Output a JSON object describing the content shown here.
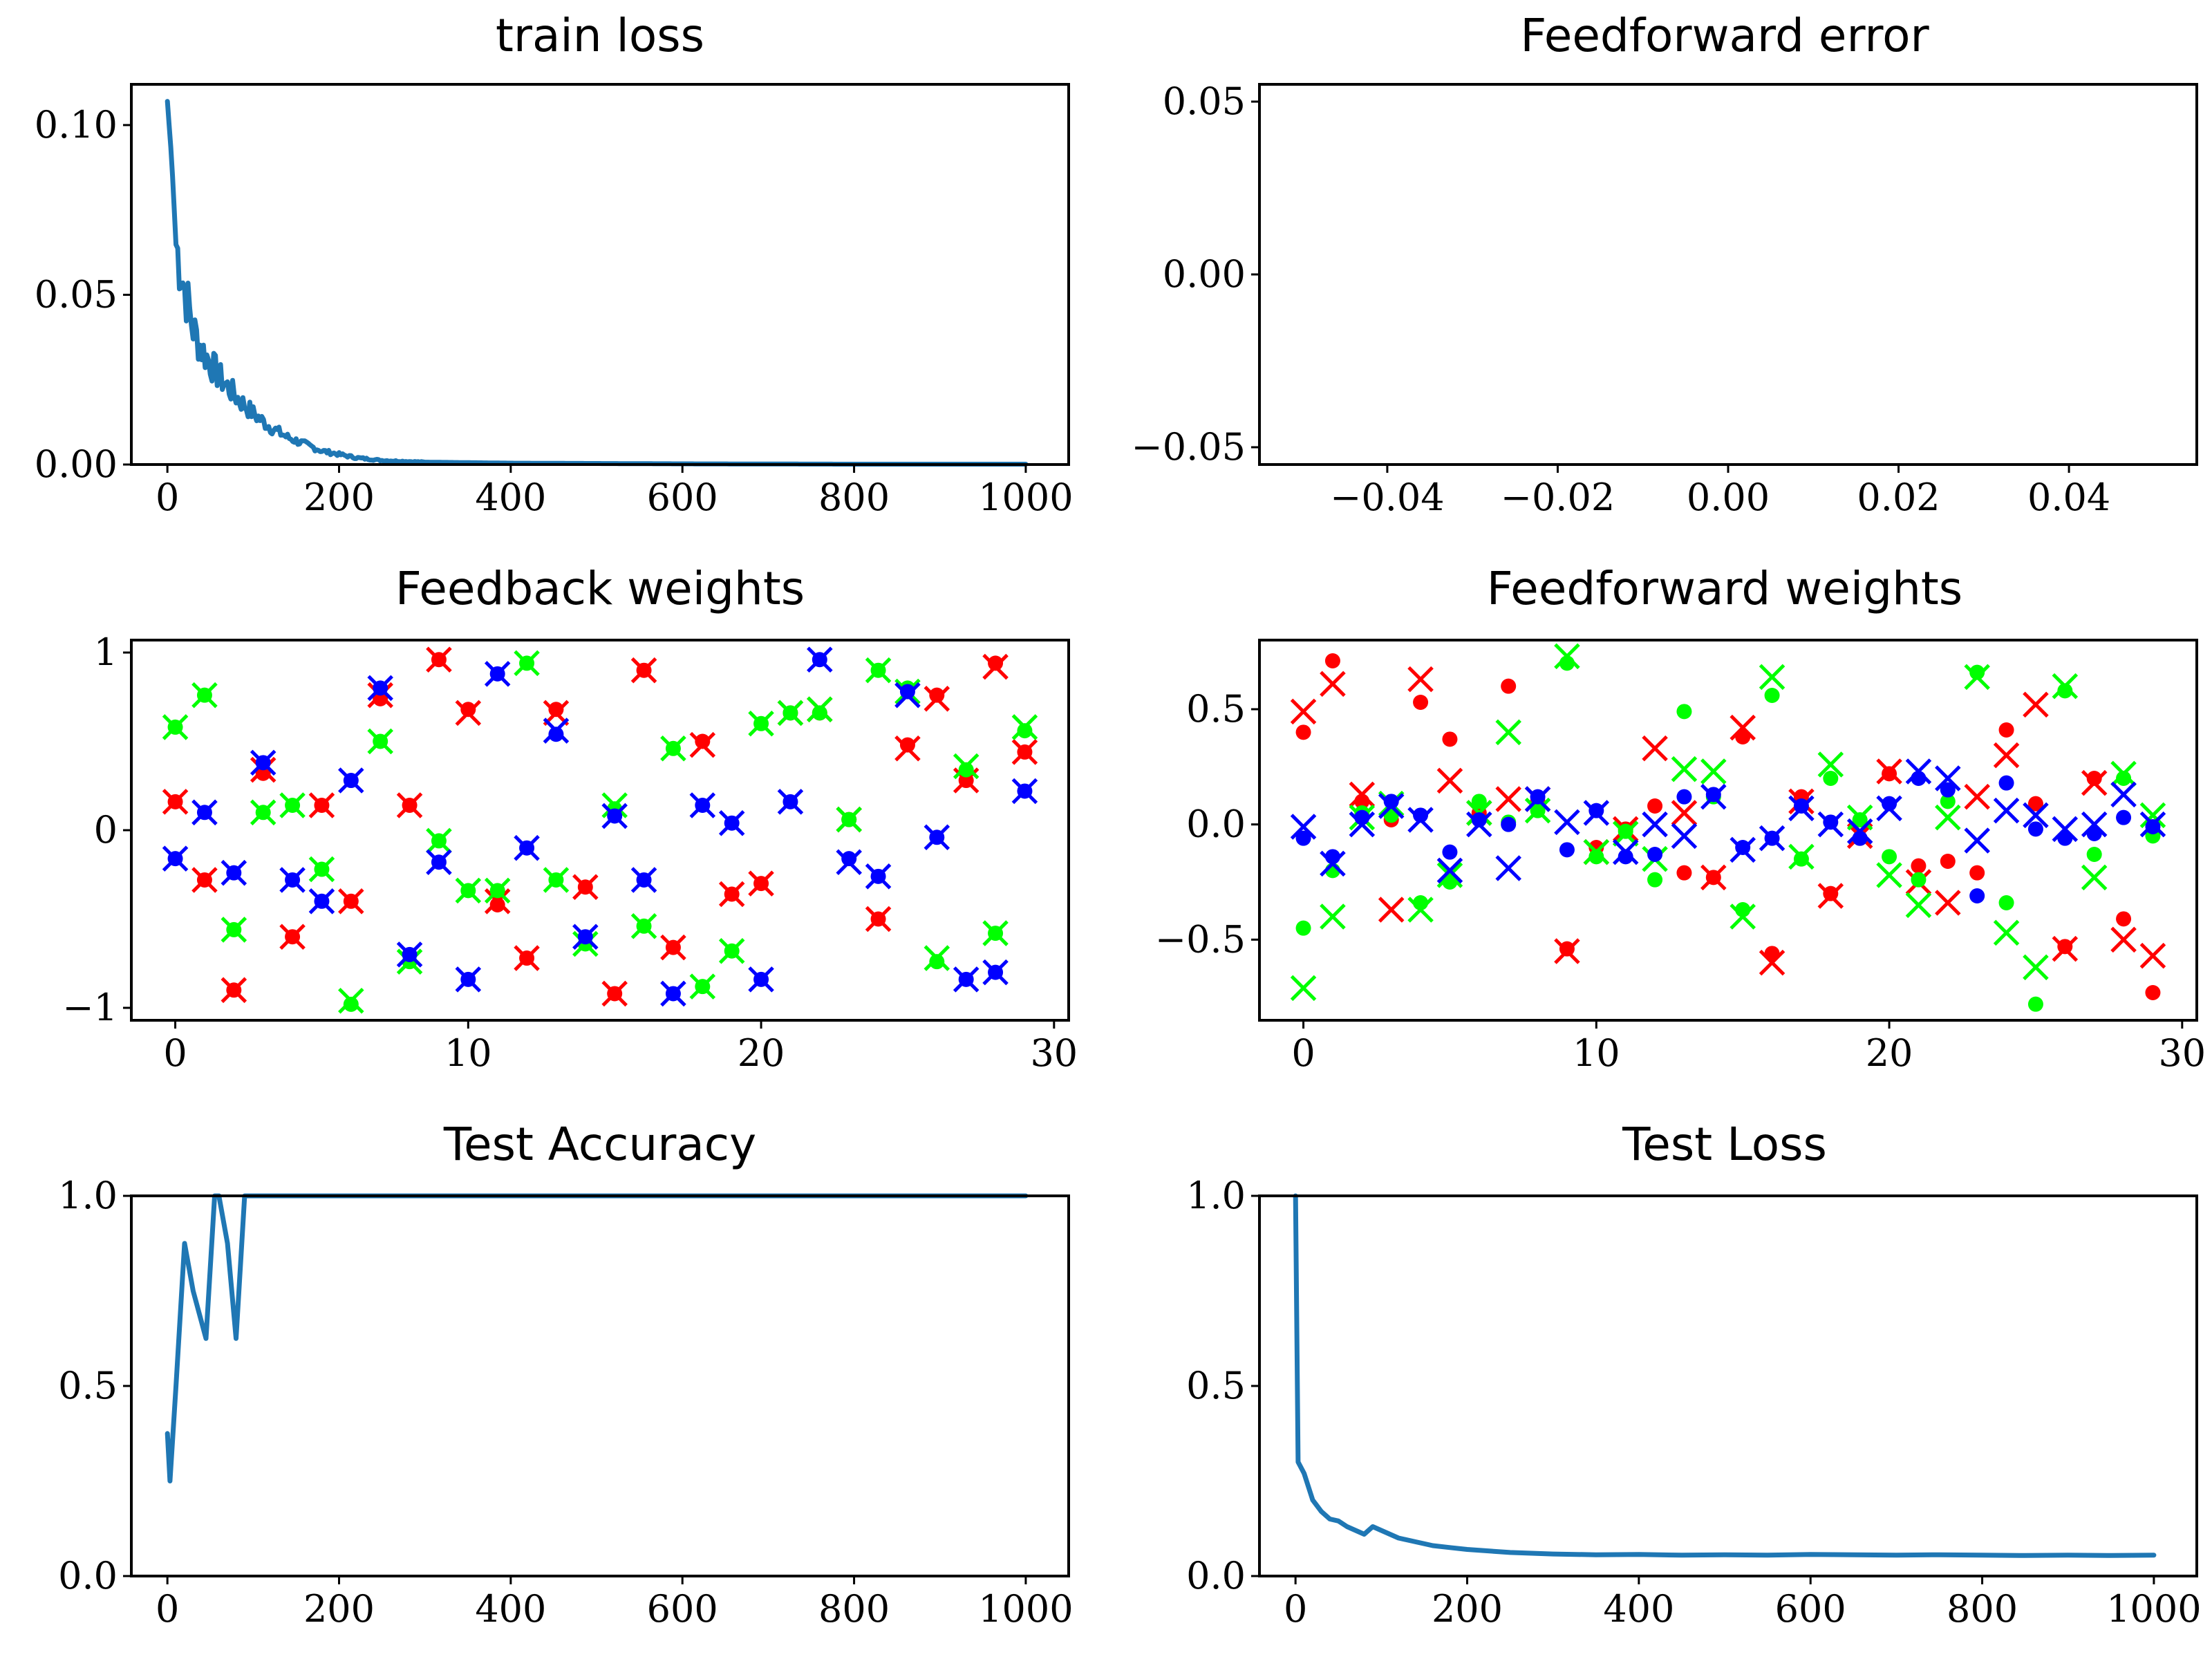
{
  "chart_data": [
    {
      "type": "line",
      "title": "train loss",
      "xlabel": "",
      "ylabel": "",
      "xlim": [
        -42,
        1050
      ],
      "ylim": [
        0,
        0.112
      ],
      "xticks": [
        0,
        200,
        400,
        600,
        800,
        1000
      ],
      "xtick_labels": [
        "0",
        "200",
        "400",
        "600",
        "800",
        "1000"
      ],
      "yticks": [
        0,
        0.05,
        0.1
      ],
      "ytick_labels": [
        "0.00",
        "0.05",
        "0.10"
      ],
      "grid": false,
      "color": "#1f77b4",
      "noisy": true,
      "x": [
        0,
        5,
        10,
        20,
        30,
        40,
        50,
        60,
        80,
        100,
        120,
        140,
        160,
        180,
        200,
        220,
        250,
        300,
        400,
        500,
        600,
        700,
        800,
        900,
        1000
      ],
      "y": [
        0.107,
        0.09,
        0.065,
        0.052,
        0.04,
        0.034,
        0.03,
        0.026,
        0.02,
        0.015,
        0.011,
        0.008,
        0.006,
        0.004,
        0.003,
        0.002,
        0.0012,
        0.0007,
        0.0004,
        0.0003,
        0.0002,
        0.00015,
        0.0001,
        0.0001,
        0.0001
      ]
    },
    {
      "type": "line",
      "title": "Feedforward error",
      "xlabel": "",
      "ylabel": "",
      "xlim": [
        -0.055,
        0.055
      ],
      "ylim": [
        -0.055,
        0.055
      ],
      "xticks": [
        -0.04,
        -0.02,
        0,
        0.02,
        0.04
      ],
      "xtick_labels": [
        "−0.04",
        "−0.02",
        "0.00",
        "0.02",
        "0.04"
      ],
      "yticks": [
        -0.05,
        0,
        0.05
      ],
      "ytick_labels": [
        "−0.05",
        "0.00",
        "0.05"
      ],
      "grid": false,
      "x": [],
      "y": []
    },
    {
      "type": "scatter",
      "title": "Feedback weights",
      "xlabel": "",
      "ylabel": "",
      "xlim": [
        -1.5,
        30.5
      ],
      "ylim": [
        -1.07,
        1.07
      ],
      "xticks": [
        0,
        10,
        20,
        30
      ],
      "xtick_labels": [
        "0",
        "10",
        "20",
        "30"
      ],
      "yticks": [
        -1,
        0,
        1
      ],
      "ytick_labels": [
        "−1",
        "0",
        "1"
      ],
      "grid": false,
      "series": [
        {
          "color": "#ff0000",
          "dots": [
            0.16,
            -0.28,
            -0.9,
            0.32,
            -0.6,
            0.14,
            -0.4,
            0.74,
            0.14,
            0.96,
            0.68,
            -0.42,
            -0.72,
            0.68,
            -0.32,
            -0.92,
            0.9,
            -0.66,
            0.5,
            -0.36,
            -0.3,
            0.66,
            0.66,
            0.06,
            -0.5,
            0.48,
            0.76,
            0.28,
            0.94,
            0.44
          ],
          "crosses": [
            0.16,
            -0.28,
            -0.9,
            0.34,
            -0.6,
            0.14,
            -0.4,
            0.76,
            0.14,
            0.96,
            0.66,
            -0.4,
            -0.72,
            0.66,
            -0.32,
            -0.92,
            0.9,
            -0.66,
            0.48,
            -0.36,
            -0.3,
            0.66,
            0.68,
            0.06,
            -0.5,
            0.46,
            0.74,
            0.28,
            0.92,
            0.44
          ]
        },
        {
          "color": "#00ff00",
          "dots": [
            0.58,
            0.76,
            -0.56,
            0.1,
            0.14,
            -0.22,
            -0.98,
            0.5,
            -0.74,
            -0.06,
            -0.34,
            -0.34,
            0.94,
            -0.28,
            -0.64,
            0.12,
            -0.54,
            0.46,
            -0.88,
            -0.68,
            0.6,
            0.66,
            0.66,
            0.06,
            0.9,
            0.8,
            -0.74,
            0.34,
            -0.58,
            0.56
          ],
          "crosses": [
            0.58,
            0.76,
            -0.56,
            0.1,
            0.14,
            -0.22,
            -0.96,
            0.5,
            -0.74,
            -0.06,
            -0.34,
            -0.34,
            0.94,
            -0.28,
            -0.64,
            0.14,
            -0.54,
            0.46,
            -0.88,
            -0.68,
            0.6,
            0.66,
            0.68,
            0.06,
            0.9,
            0.78,
            -0.72,
            0.36,
            -0.58,
            0.58
          ]
        },
        {
          "color": "#0000ff",
          "dots": [
            -0.16,
            0.1,
            -0.24,
            0.38,
            -0.28,
            -0.4,
            0.28,
            0.8,
            -0.7,
            -0.18,
            -0.84,
            0.88,
            -0.1,
            0.54,
            -0.6,
            0.08,
            -0.28,
            -0.92,
            0.14,
            0.04,
            -0.84,
            0.16,
            0.96,
            -0.16,
            -0.26,
            0.78,
            -0.04,
            -0.84,
            -0.8,
            0.22
          ],
          "crosses": [
            -0.16,
            0.1,
            -0.24,
            0.38,
            -0.28,
            -0.4,
            0.28,
            0.8,
            -0.7,
            -0.18,
            -0.84,
            0.88,
            -0.1,
            0.56,
            -0.6,
            0.08,
            -0.28,
            -0.92,
            0.14,
            0.04,
            -0.84,
            0.16,
            0.96,
            -0.18,
            -0.26,
            0.76,
            -0.04,
            -0.84,
            -0.8,
            0.22
          ]
        }
      ]
    },
    {
      "type": "scatter",
      "title": "Feedforward weights",
      "xlabel": "",
      "ylabel": "",
      "xlim": [
        -1.5,
        30.5
      ],
      "ylim": [
        -0.85,
        0.8
      ],
      "xticks": [
        0,
        10,
        20,
        30
      ],
      "xtick_labels": [
        "0",
        "10",
        "20",
        "30"
      ],
      "yticks": [
        -0.5,
        0,
        0.5
      ],
      "ytick_labels": [
        "−0.5",
        "0.0",
        "0.5"
      ],
      "grid": false,
      "series": [
        {
          "color": "#ff0000",
          "dots": [
            0.4,
            0.71,
            0.1,
            0.02,
            0.53,
            0.37,
            0.05,
            0.6,
            0.1,
            -0.54,
            -0.1,
            -0.02,
            0.08,
            -0.21,
            -0.23,
            0.38,
            -0.56,
            0.12,
            -0.3,
            -0.06,
            0.22,
            -0.18,
            -0.16,
            -0.21,
            0.41,
            0.09,
            -0.53,
            0.2,
            -0.41,
            -0.73
          ],
          "crosses": [
            0.49,
            0.61,
            0.13,
            -0.37,
            0.63,
            0.19,
            0.05,
            0.11,
            0.11,
            -0.55,
            -0.12,
            -0.02,
            0.33,
            0.05,
            -0.23,
            0.42,
            -0.6,
            0.1,
            -0.31,
            -0.05,
            0.23,
            -0.25,
            -0.34,
            0.12,
            0.3,
            0.52,
            -0.54,
            0.18,
            -0.5,
            -0.57
          ]
        },
        {
          "color": "#00ff00",
          "dots": [
            -0.45,
            -0.2,
            0.05,
            0.04,
            -0.34,
            -0.25,
            0.1,
            0.01,
            0.06,
            0.7,
            -0.14,
            -0.03,
            -0.24,
            0.49,
            0.12,
            -0.37,
            0.56,
            -0.15,
            0.2,
            0.02,
            -0.14,
            -0.24,
            0.1,
            0.66,
            -0.34,
            -0.78,
            0.58,
            -0.13,
            0.2,
            -0.05
          ],
          "crosses": [
            -0.71,
            -0.4,
            0.03,
            0.09,
            -0.37,
            -0.22,
            0.05,
            0.4,
            0.06,
            0.73,
            -0.12,
            -0.04,
            -0.15,
            0.24,
            0.23,
            -0.4,
            0.64,
            -0.14,
            0.26,
            0.03,
            -0.22,
            -0.35,
            0.03,
            0.64,
            -0.47,
            -0.62,
            0.6,
            -0.23,
            0.22,
            0.04
          ]
        },
        {
          "color": "#0000ff",
          "dots": [
            -0.06,
            -0.14,
            0.03,
            0.1,
            0.04,
            -0.12,
            0.02,
            0.0,
            0.12,
            -0.11,
            0.06,
            -0.14,
            -0.13,
            0.12,
            0.13,
            -0.1,
            -0.06,
            0.08,
            0.01,
            -0.06,
            0.09,
            0.2,
            0.15,
            -0.31,
            0.18,
            -0.02,
            -0.06,
            -0.04,
            0.03,
            -0.01
          ],
          "crosses": [
            -0.01,
            -0.17,
            0.0,
            0.08,
            0.02,
            -0.2,
            0.0,
            -0.19,
            0.11,
            0.01,
            0.05,
            -0.12,
            0.0,
            -0.05,
            0.12,
            -0.11,
            -0.06,
            0.07,
            0.0,
            -0.03,
            0.07,
            0.23,
            0.2,
            -0.07,
            0.06,
            0.04,
            -0.02,
            0.0,
            0.13,
            0.0
          ]
        }
      ]
    },
    {
      "type": "line",
      "title": "Test Accuracy",
      "xlabel": "",
      "ylabel": "",
      "xlim": [
        -42,
        1050
      ],
      "ylim": [
        0,
        1.0
      ],
      "xticks": [
        0,
        200,
        400,
        600,
        800,
        1000
      ],
      "xtick_labels": [
        "0",
        "200",
        "400",
        "600",
        "800",
        "1000"
      ],
      "yticks": [
        0,
        0.5,
        1.0
      ],
      "ytick_labels": [
        "0.0",
        "0.5",
        "1.0"
      ],
      "grid": false,
      "color": "#1f77b4",
      "x": [
        0,
        3,
        10,
        20,
        30,
        45,
        55,
        60,
        70,
        80,
        90,
        100,
        200,
        400,
        600,
        800,
        1000
      ],
      "y": [
        0.375,
        0.25,
        0.5,
        0.875,
        0.75,
        0.625,
        1.0,
        1.0,
        0.875,
        0.625,
        1.0,
        1.0,
        1.0,
        1.0,
        1.0,
        1.0,
        1.0
      ]
    },
    {
      "type": "line",
      "title": "Test Loss",
      "xlabel": "",
      "ylabel": "",
      "xlim": [
        -42,
        1050
      ],
      "ylim": [
        0,
        1.0
      ],
      "xticks": [
        0,
        200,
        400,
        600,
        800,
        1000
      ],
      "xtick_labels": [
        "0",
        "200",
        "400",
        "600",
        "800",
        "1000"
      ],
      "yticks": [
        0,
        0.5,
        1.0
      ],
      "ytick_labels": [
        "0.0",
        "0.5",
        "1.0"
      ],
      "grid": false,
      "color": "#1f77b4",
      "x": [
        0,
        3,
        10,
        20,
        30,
        40,
        50,
        60,
        70,
        80,
        90,
        100,
        120,
        140,
        160,
        180,
        200,
        250,
        300,
        350,
        400,
        450,
        500,
        550,
        600,
        650,
        700,
        750,
        800,
        850,
        900,
        950,
        1000
      ],
      "y": [
        1.0,
        0.3,
        0.27,
        0.2,
        0.17,
        0.15,
        0.145,
        0.13,
        0.12,
        0.11,
        0.13,
        0.12,
        0.1,
        0.09,
        0.08,
        0.075,
        0.07,
        0.062,
        0.058,
        0.056,
        0.057,
        0.055,
        0.056,
        0.055,
        0.057,
        0.056,
        0.055,
        0.056,
        0.055,
        0.054,
        0.055,
        0.054,
        0.055
      ]
    }
  ]
}
